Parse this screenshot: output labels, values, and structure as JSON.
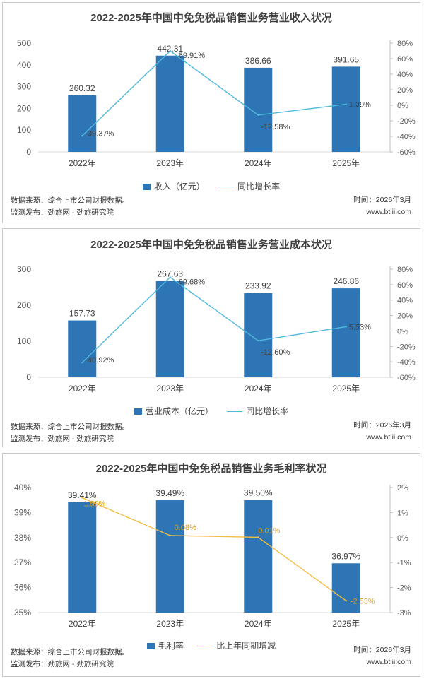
{
  "chart_data": [
    {
      "type": "bar",
      "title": "2022-2025年中国中免免税品销售业务营业收入状况",
      "categories": [
        "2022年",
        "2023年",
        "2024年",
        "2025年"
      ],
      "series": [
        {
          "name": "收入（亿元）",
          "axis": "left",
          "kind": "bar",
          "values": [
            260.32,
            442.31,
            386.66,
            391.65
          ],
          "labels": [
            "260.32",
            "442.31",
            "386.66",
            "391.65"
          ]
        },
        {
          "name": "同比增长率",
          "axis": "right",
          "kind": "line",
          "values": [
            -39.37,
            69.91,
            -12.58,
            1.29
          ],
          "labels": [
            "-39.37%",
            "69.91%",
            "-12.58%",
            "1.29%"
          ]
        }
      ],
      "ylim": [
        0,
        500
      ],
      "yticks": [
        "500",
        "400",
        "300",
        "200",
        "100",
        "0"
      ],
      "y2lim": [
        -60,
        80
      ],
      "y2ticks": [
        "80%",
        "60%",
        "40%",
        "20%",
        "0%",
        "-20%",
        "-40%",
        "-60%"
      ],
      "legend": [
        "收入（亿元）",
        "同比增长率"
      ],
      "colors": {
        "bar": "#2e75b6",
        "line": "#4fb9dd"
      },
      "source_lines": [
        "数据来源：综合上市公司财报数据。",
        "监测发布：劲旅网 - 劲旅研究院"
      ],
      "meta_lines": [
        "时间：2026年3月",
        "www.btiii.com"
      ]
    },
    {
      "type": "bar",
      "title": "2022-2025年中国中免免税品销售业务营业成本状况",
      "categories": [
        "2022年",
        "2023年",
        "2024年",
        "2025年"
      ],
      "series": [
        {
          "name": "营业成本（亿元）",
          "axis": "left",
          "kind": "bar",
          "values": [
            157.73,
            267.63,
            233.92,
            246.86
          ],
          "labels": [
            "157.73",
            "267.63",
            "233.92",
            "246.86"
          ]
        },
        {
          "name": "同比增长率",
          "axis": "right",
          "kind": "line",
          "values": [
            -40.92,
            69.68,
            -12.6,
            5.53
          ],
          "labels": [
            "-40.92%",
            "69.68%",
            "-12.60%",
            "5.53%"
          ]
        }
      ],
      "ylim": [
        0,
        300
      ],
      "yticks": [
        "300",
        "200",
        "100",
        "0"
      ],
      "y2lim": [
        -60,
        80
      ],
      "y2ticks": [
        "80%",
        "60%",
        "40%",
        "20%",
        "0%",
        "-20%",
        "-40%",
        "-60%"
      ],
      "legend": [
        "营业成本（亿元）",
        "同比增长率"
      ],
      "colors": {
        "bar": "#2e75b6",
        "line": "#4fb9dd"
      },
      "source_lines": [
        "数据来源：综合上市公司财报数据。",
        "监测发布：劲旅网 - 劲旅研究院"
      ],
      "meta_lines": [
        "时间：2026年3月",
        "www.btiii.com"
      ]
    },
    {
      "type": "bar",
      "title": "2022-2025年中国中免免税品销售业务毛利率状况",
      "categories": [
        "2022年",
        "2023年",
        "2024年",
        "2025年"
      ],
      "series": [
        {
          "name": "毛利率",
          "axis": "left",
          "kind": "bar",
          "values": [
            39.41,
            39.49,
            39.5,
            36.97
          ],
          "labels": [
            "39.41%",
            "39.49%",
            "39.50%",
            "36.97%"
          ]
        },
        {
          "name": "比上年同期增减",
          "axis": "right",
          "kind": "line",
          "values": [
            1.59,
            0.08,
            0.01,
            -2.53
          ],
          "labels": [
            "1.59%",
            "0.08%",
            "0.01%",
            "-2.53%"
          ]
        }
      ],
      "ylim": [
        35,
        40
      ],
      "yticks": [
        "40%",
        "39%",
        "38%",
        "37%",
        "36%",
        "35%"
      ],
      "y2lim": [
        -3,
        2
      ],
      "y2ticks": [
        "2%",
        "1%",
        "0%",
        "-1%",
        "-2%",
        "-3%"
      ],
      "legend": [
        "毛利率",
        "比上年同期增减"
      ],
      "colors": {
        "bar": "#2e75b6",
        "line": "#f5bd3f",
        "line_label": "#d99c1a"
      },
      "source_lines": [
        "数据来源：综合上市公司财报数据。",
        "监测发布：劲旅网 - 劲旅研究院"
      ],
      "meta_lines": [
        "时间：2026年3月",
        "www.btiii.com"
      ]
    }
  ]
}
